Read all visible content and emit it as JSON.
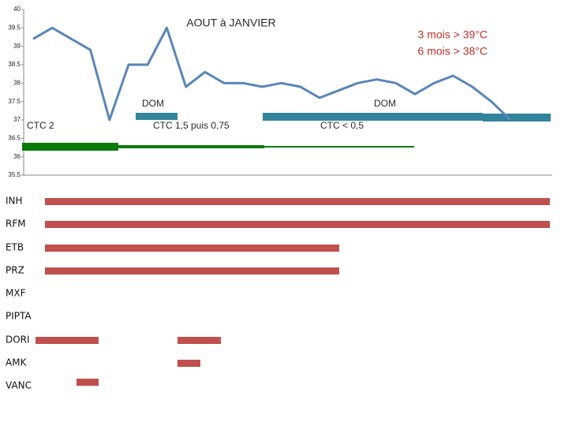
{
  "chart_data": {
    "type": "line",
    "title": "AOUT à JANVIER",
    "annotations": [
      "3 mois > 39°C",
      "6 mois > 38°C",
      "DOM",
      "DOM",
      "CTC 2",
      "CTC 1,5   puis 0,75",
      "CTC < 0,5"
    ],
    "categories": [
      null,
      null,
      null,
      null,
      null,
      null,
      null,
      null,
      null,
      null,
      null,
      null,
      null,
      null,
      null,
      null,
      null,
      null,
      null,
      null,
      null,
      null,
      null,
      null,
      null,
      null,
      null,
      null
    ],
    "series": [
      {
        "color": "#5a86b8",
        "values": [
          39.2,
          39.5,
          39.2,
          38.9,
          37.0,
          38.5,
          38.5,
          39.5,
          37.9,
          38.3,
          38.0,
          38.0,
          37.9,
          38.0,
          37.9,
          37.6,
          37.8,
          38.0,
          38.1,
          38.0,
          37.7,
          38.0,
          38.2,
          37.9,
          37.5,
          37.0,
          null,
          null
        ]
      }
    ],
    "ylim": [
      35.5,
      40
    ],
    "yticks": [
      35.5,
      36,
      36.5,
      37,
      37.5,
      38,
      38.5,
      39,
      39.5,
      40
    ],
    "grid": false
  },
  "treatments": {
    "drugs": [
      "INH",
      "RFM",
      "ETB",
      "PRZ",
      "MXF",
      "PIPTA",
      "DORI",
      "AMK",
      "VANC"
    ]
  }
}
